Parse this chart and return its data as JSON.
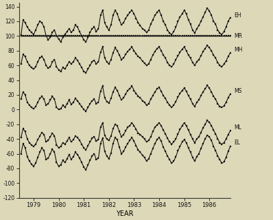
{
  "title": "",
  "xlabel": "YEAR",
  "ylabel": "",
  "ylim": [
    -120,
    145
  ],
  "yticks": [
    -120,
    -100,
    -80,
    -60,
    -40,
    -20,
    0,
    20,
    40,
    60,
    80,
    100,
    120,
    140
  ],
  "background_color": "#ddd8b8",
  "series_labels": [
    "EH",
    "MR",
    "MH",
    "MS",
    "ML",
    "EL"
  ],
  "xtick_years": [
    1979,
    1980,
    1981,
    1982,
    1983,
    1984,
    1985,
    1986
  ],
  "EH": [
    101,
    122,
    118,
    112,
    108,
    105,
    102,
    108,
    115,
    120,
    118,
    112,
    100,
    95,
    98,
    105,
    108,
    100,
    96,
    92,
    98,
    102,
    106,
    110,
    105,
    108,
    115,
    112,
    106,
    100,
    95,
    92,
    98,
    105,
    110,
    112,
    106,
    110,
    128,
    135,
    118,
    112,
    108,
    115,
    128,
    135,
    130,
    122,
    115,
    118,
    124,
    128,
    132,
    135,
    130,
    124,
    118,
    114,
    110,
    108,
    105,
    108,
    116,
    122,
    128,
    132,
    135,
    128,
    120,
    115,
    108,
    104,
    102,
    106,
    112,
    120,
    126,
    130,
    135,
    130,
    122,
    116,
    108,
    104,
    110,
    114,
    120,
    126,
    132,
    138,
    134,
    128,
    120,
    116,
    108,
    104,
    102,
    106,
    112,
    120,
    125,
    128,
    130,
    126,
    118,
    112,
    106,
    102,
    108,
    114,
    120,
    130,
    136,
    132,
    128,
    124,
    118,
    114,
    108,
    106
  ],
  "MR": [
    100,
    100,
    100,
    100,
    100,
    100,
    100,
    100,
    100,
    100,
    100,
    100,
    100,
    100,
    100,
    100,
    100,
    100,
    100,
    100,
    100,
    100,
    100,
    100,
    100,
    100,
    100,
    100,
    100,
    100,
    100,
    100,
    100,
    100,
    100,
    100,
    100,
    100,
    100,
    100,
    100,
    100,
    100,
    100,
    100,
    100,
    100,
    100,
    100,
    100,
    100,
    100,
    100,
    100,
    100,
    100,
    100,
    100,
    100,
    100,
    100,
    100,
    100,
    100,
    100,
    100,
    100,
    100,
    100,
    100,
    100,
    100,
    100,
    100,
    100,
    100,
    100,
    100,
    100,
    100,
    100,
    100,
    100,
    100,
    100,
    100,
    100,
    100,
    100,
    100,
    100,
    100,
    100,
    100,
    100,
    100,
    100,
    100,
    100,
    100,
    100,
    100,
    100,
    100,
    100,
    100,
    100,
    100,
    100,
    100,
    100,
    100,
    100,
    100,
    100,
    100,
    100,
    100,
    100,
    100
  ],
  "MH": [
    62,
    75,
    72,
    65,
    60,
    57,
    55,
    58,
    65,
    70,
    72,
    68,
    60,
    56,
    58,
    65,
    68,
    58,
    54,
    52,
    57,
    55,
    60,
    65,
    62,
    65,
    70,
    67,
    62,
    57,
    52,
    50,
    55,
    60,
    65,
    67,
    62,
    65,
    78,
    85,
    70,
    65,
    62,
    68,
    77,
    84,
    80,
    74,
    68,
    70,
    75,
    79,
    82,
    85,
    80,
    76,
    72,
    70,
    66,
    63,
    60,
    62,
    68,
    74,
    79,
    83,
    85,
    80,
    74,
    70,
    64,
    60,
    58,
    62,
    68,
    73,
    78,
    82,
    85,
    80,
    74,
    70,
    64,
    60,
    65,
    68,
    73,
    79,
    83,
    87,
    84,
    80,
    74,
    70,
    64,
    60,
    58,
    62,
    66,
    72,
    77,
    81,
    83,
    79,
    73,
    68,
    63,
    59,
    63,
    68,
    74,
    81,
    86,
    82,
    80,
    77,
    72,
    68,
    64,
    61
  ],
  "MS": [
    14,
    24,
    20,
    10,
    6,
    3,
    1,
    4,
    10,
    15,
    18,
    14,
    6,
    8,
    13,
    18,
    14,
    3,
    0,
    1,
    6,
    3,
    8,
    13,
    7,
    10,
    15,
    12,
    8,
    4,
    0,
    -2,
    3,
    8,
    12,
    14,
    8,
    10,
    25,
    32,
    16,
    11,
    9,
    15,
    24,
    30,
    26,
    19,
    13,
    16,
    21,
    26,
    28,
    32,
    26,
    22,
    18,
    16,
    12,
    10,
    6,
    8,
    14,
    19,
    24,
    28,
    30,
    25,
    19,
    15,
    10,
    6,
    3,
    6,
    11,
    17,
    22,
    26,
    29,
    25,
    19,
    14,
    8,
    4,
    10,
    13,
    19,
    24,
    28,
    33,
    29,
    24,
    18,
    14,
    8,
    4,
    3,
    5,
    10,
    16,
    21,
    25,
    26,
    22,
    17,
    12,
    7,
    3,
    7,
    12,
    18,
    26,
    31,
    28,
    25,
    21,
    16,
    12,
    9,
    6
  ],
  "ML": [
    -38,
    -26,
    -30,
    -40,
    -45,
    -48,
    -50,
    -47,
    -41,
    -36,
    -31,
    -34,
    -44,
    -42,
    -37,
    -32,
    -36,
    -48,
    -52,
    -50,
    -45,
    -47,
    -43,
    -38,
    -44,
    -41,
    -36,
    -38,
    -42,
    -47,
    -52,
    -55,
    -49,
    -44,
    -39,
    -37,
    -43,
    -41,
    -24,
    -18,
    -35,
    -40,
    -42,
    -36,
    -26,
    -20,
    -22,
    -30,
    -37,
    -34,
    -29,
    -24,
    -22,
    -18,
    -22,
    -27,
    -32,
    -34,
    -37,
    -40,
    -44,
    -42,
    -37,
    -30,
    -24,
    -21,
    -18,
    -22,
    -28,
    -33,
    -39,
    -44,
    -47,
    -44,
    -40,
    -33,
    -27,
    -22,
    -18,
    -22,
    -28,
    -34,
    -40,
    -45,
    -40,
    -37,
    -31,
    -25,
    -20,
    -15,
    -17,
    -22,
    -28,
    -33,
    -40,
    -45,
    -47,
    -45,
    -40,
    -34,
    -29,
    -24,
    -22,
    -26,
    -32,
    -37,
    -42,
    -47,
    -43,
    -38,
    -31,
    -23,
    -18,
    -20,
    -22,
    -26,
    -32,
    -36,
    -40,
    -43
  ],
  "EL": [
    -60,
    -46,
    -52,
    -64,
    -70,
    -74,
    -77,
    -73,
    -65,
    -58,
    -52,
    -56,
    -68,
    -66,
    -60,
    -54,
    -58,
    -72,
    -77,
    -75,
    -69,
    -72,
    -67,
    -61,
    -68,
    -64,
    -58,
    -61,
    -66,
    -72,
    -78,
    -82,
    -75,
    -69,
    -63,
    -60,
    -68,
    -66,
    -46,
    -39,
    -57,
    -63,
    -67,
    -59,
    -46,
    -38,
    -41,
    -51,
    -60,
    -57,
    -51,
    -46,
    -42,
    -38,
    -43,
    -49,
    -55,
    -58,
    -62,
    -65,
    -70,
    -67,
    -60,
    -53,
    -46,
    -41,
    -38,
    -43,
    -51,
    -57,
    -63,
    -68,
    -73,
    -70,
    -64,
    -56,
    -50,
    -44,
    -41,
    -45,
    -52,
    -58,
    -65,
    -70,
    -64,
    -60,
    -53,
    -46,
    -40,
    -35,
    -37,
    -42,
    -50,
    -56,
    -63,
    -68,
    -73,
    -71,
    -65,
    -57,
    -50,
    -45,
    -43,
    -48,
    -55,
    -61,
    -67,
    -73,
    -67,
    -60,
    -52,
    -43,
    -37,
    -40,
    -43,
    -47,
    -54,
    -59,
    -64,
    -68
  ]
}
